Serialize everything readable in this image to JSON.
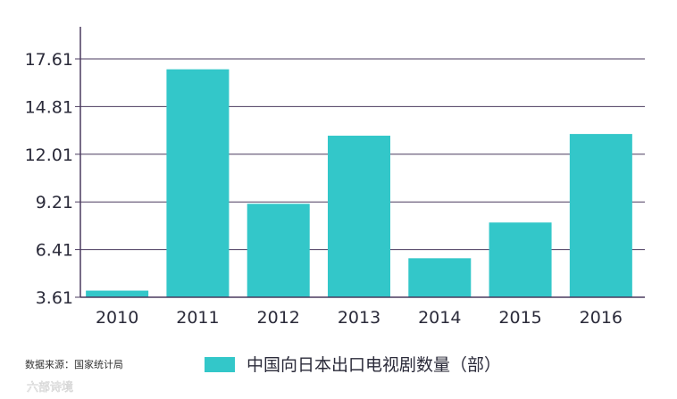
{
  "chart_data": {
    "type": "bar",
    "categories": [
      "2010",
      "2011",
      "2012",
      "2013",
      "2014",
      "2015",
      "2016"
    ],
    "values": [
      4.0,
      17.0,
      9.1,
      13.1,
      5.9,
      8.0,
      13.2
    ],
    "yticks": [
      "3.61",
      "6.41",
      "9.21",
      "12.01",
      "14.81",
      "17.61"
    ],
    "ylim": [
      3.61,
      17.61
    ],
    "series": [
      {
        "name": "中国向日本出口电视剧数量（部）"
      }
    ],
    "legend_position": "bottom",
    "grid": true
  },
  "source_note": "数据来源：国家统计局",
  "watermark": "六部诗境",
  "colors": {
    "bar": "#33c7c9",
    "grid": "#4a3a5e",
    "axis": "#4a3a5e"
  }
}
